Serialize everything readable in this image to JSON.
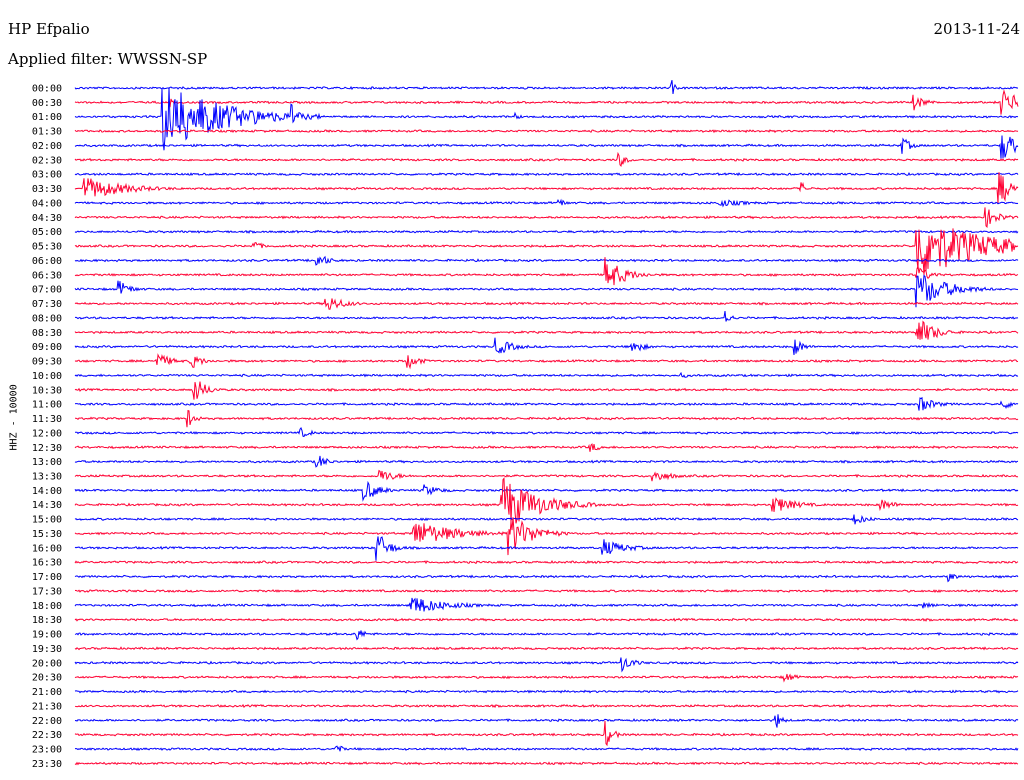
{
  "header": {
    "station": "HP Efpalio",
    "date": "2013-11-24",
    "filter": "Applied filter: WWSSN-SP"
  },
  "chart_data": {
    "type": "line",
    "title": "HP Efpalio",
    "date": "2013-11-24",
    "filter": "WWSSN-SP",
    "ylabel": "HHZ - 10000",
    "row_labels": [
      "00:00",
      "00:30",
      "01:00",
      "01:30",
      "02:00",
      "02:30",
      "03:00",
      "03:30",
      "04:00",
      "04:30",
      "05:00",
      "05:30",
      "06:00",
      "06:30",
      "07:00",
      "07:30",
      "08:00",
      "08:30",
      "09:00",
      "09:30",
      "10:00",
      "10:30",
      "11:00",
      "11:30",
      "12:00",
      "12:30",
      "13:00",
      "13:30",
      "14:00",
      "14:30",
      "15:00",
      "15:30",
      "16:00",
      "16:30",
      "17:00",
      "17:30",
      "18:00",
      "18:30",
      "19:00",
      "19:30",
      "20:00",
      "20:30",
      "21:00",
      "21:30",
      "22:00",
      "22:30",
      "23:00",
      "23:30"
    ],
    "row_minutes": 30,
    "colors": {
      "even_rows": "#0000ff",
      "odd_rows": "#ff0033"
    },
    "grid": false,
    "events": [
      {
        "row": 0,
        "minute": 19.0,
        "amp": 8,
        "len": 0.3
      },
      {
        "row": 1,
        "minute": 3.0,
        "amp": 6,
        "len": 0.3
      },
      {
        "row": 1,
        "minute": 26.7,
        "amp": 8,
        "len": 1.0
      },
      {
        "row": 1,
        "minute": 29.5,
        "amp": 14,
        "len": 1.5
      },
      {
        "row": 2,
        "minute": 2.8,
        "amp": 38,
        "len": 5.0
      },
      {
        "row": 2,
        "minute": 6.9,
        "amp": 14,
        "len": 0.6
      },
      {
        "row": 2,
        "minute": 14.0,
        "amp": 4,
        "len": 0.5
      },
      {
        "row": 4,
        "minute": 26.3,
        "amp": 9,
        "len": 0.8
      },
      {
        "row": 4,
        "minute": 29.5,
        "amp": 16,
        "len": 1.5
      },
      {
        "row": 5,
        "minute": 17.3,
        "amp": 9,
        "len": 0.6
      },
      {
        "row": 7,
        "minute": 0.3,
        "amp": 12,
        "len": 3.5
      },
      {
        "row": 7,
        "minute": 23.1,
        "amp": 7,
        "len": 0.6
      },
      {
        "row": 7,
        "minute": 29.4,
        "amp": 18,
        "len": 1.2
      },
      {
        "row": 8,
        "minute": 15.4,
        "amp": 5,
        "len": 0.6
      },
      {
        "row": 8,
        "minute": 20.5,
        "amp": 4,
        "len": 2.5
      },
      {
        "row": 9,
        "minute": 29.0,
        "amp": 10,
        "len": 1.2
      },
      {
        "row": 11,
        "minute": 5.7,
        "amp": 6,
        "len": 0.7
      },
      {
        "row": 11,
        "minute": 26.8,
        "amp": 36,
        "len": 5.0
      },
      {
        "row": 12,
        "minute": 7.7,
        "amp": 8,
        "len": 1.0
      },
      {
        "row": 13,
        "minute": 16.9,
        "amp": 18,
        "len": 1.6
      },
      {
        "row": 13,
        "minute": 26.8,
        "amp": 10,
        "len": 1.0
      },
      {
        "row": 14,
        "minute": 1.4,
        "amp": 9,
        "len": 1.0
      },
      {
        "row": 14,
        "minute": 26.8,
        "amp": 20,
        "len": 2.5
      },
      {
        "row": 15,
        "minute": 8.0,
        "amp": 9,
        "len": 1.5
      },
      {
        "row": 16,
        "minute": 20.7,
        "amp": 8,
        "len": 0.5
      },
      {
        "row": 17,
        "minute": 26.8,
        "amp": 16,
        "len": 1.5
      },
      {
        "row": 18,
        "minute": 13.4,
        "amp": 9,
        "len": 1.5
      },
      {
        "row": 18,
        "minute": 17.7,
        "amp": 8,
        "len": 1.0
      },
      {
        "row": 18,
        "minute": 22.9,
        "amp": 9,
        "len": 0.8
      },
      {
        "row": 19,
        "minute": 2.6,
        "amp": 9,
        "len": 1.2
      },
      {
        "row": 19,
        "minute": 3.7,
        "amp": 8,
        "len": 1.0
      },
      {
        "row": 19,
        "minute": 10.6,
        "amp": 8,
        "len": 1.0
      },
      {
        "row": 20,
        "minute": 19.3,
        "amp": 3,
        "len": 0.8
      },
      {
        "row": 21,
        "minute": 3.8,
        "amp": 14,
        "len": 1.0
      },
      {
        "row": 22,
        "minute": 26.9,
        "amp": 8,
        "len": 1.3
      },
      {
        "row": 22,
        "minute": 29.5,
        "amp": 5,
        "len": 1.5
      },
      {
        "row": 23,
        "minute": 3.6,
        "amp": 10,
        "len": 0.6
      },
      {
        "row": 24,
        "minute": 7.2,
        "amp": 5,
        "len": 1.0
      },
      {
        "row": 25,
        "minute": 16.4,
        "amp": 5,
        "len": 1.0
      },
      {
        "row": 26,
        "minute": 7.7,
        "amp": 9,
        "len": 0.8
      },
      {
        "row": 27,
        "minute": 9.7,
        "amp": 7,
        "len": 1.5
      },
      {
        "row": 27,
        "minute": 18.4,
        "amp": 7,
        "len": 1.5
      },
      {
        "row": 28,
        "minute": 9.2,
        "amp": 12,
        "len": 1.2
      },
      {
        "row": 28,
        "minute": 11.1,
        "amp": 6,
        "len": 1.5
      },
      {
        "row": 29,
        "minute": 13.6,
        "amp": 30,
        "len": 3.0
      },
      {
        "row": 29,
        "minute": 22.2,
        "amp": 9,
        "len": 2.0
      },
      {
        "row": 29,
        "minute": 25.6,
        "amp": 7,
        "len": 1.2
      },
      {
        "row": 30,
        "minute": 24.8,
        "amp": 6,
        "len": 1.2
      },
      {
        "row": 31,
        "minute": 10.8,
        "amp": 14,
        "len": 3.5
      },
      {
        "row": 31,
        "minute": 13.8,
        "amp": 22,
        "len": 2.0
      },
      {
        "row": 32,
        "minute": 9.6,
        "amp": 18,
        "len": 1.0
      },
      {
        "row": 32,
        "minute": 16.8,
        "amp": 9,
        "len": 2.0
      },
      {
        "row": 34,
        "minute": 27.8,
        "amp": 5,
        "len": 0.8
      },
      {
        "row": 36,
        "minute": 10.7,
        "amp": 10,
        "len": 3.0
      },
      {
        "row": 36,
        "minute": 27.0,
        "amp": 4,
        "len": 1.0
      },
      {
        "row": 38,
        "minute": 8.9,
        "amp": 9,
        "len": 0.7
      },
      {
        "row": 40,
        "minute": 17.4,
        "amp": 9,
        "len": 1.0
      },
      {
        "row": 41,
        "minute": 22.6,
        "amp": 5,
        "len": 1.0
      },
      {
        "row": 44,
        "minute": 22.3,
        "amp": 10,
        "len": 0.5
      },
      {
        "row": 45,
        "minute": 16.9,
        "amp": 14,
        "len": 0.6
      },
      {
        "row": 46,
        "minute": 8.3,
        "amp": 7,
        "len": 0.5
      }
    ]
  }
}
